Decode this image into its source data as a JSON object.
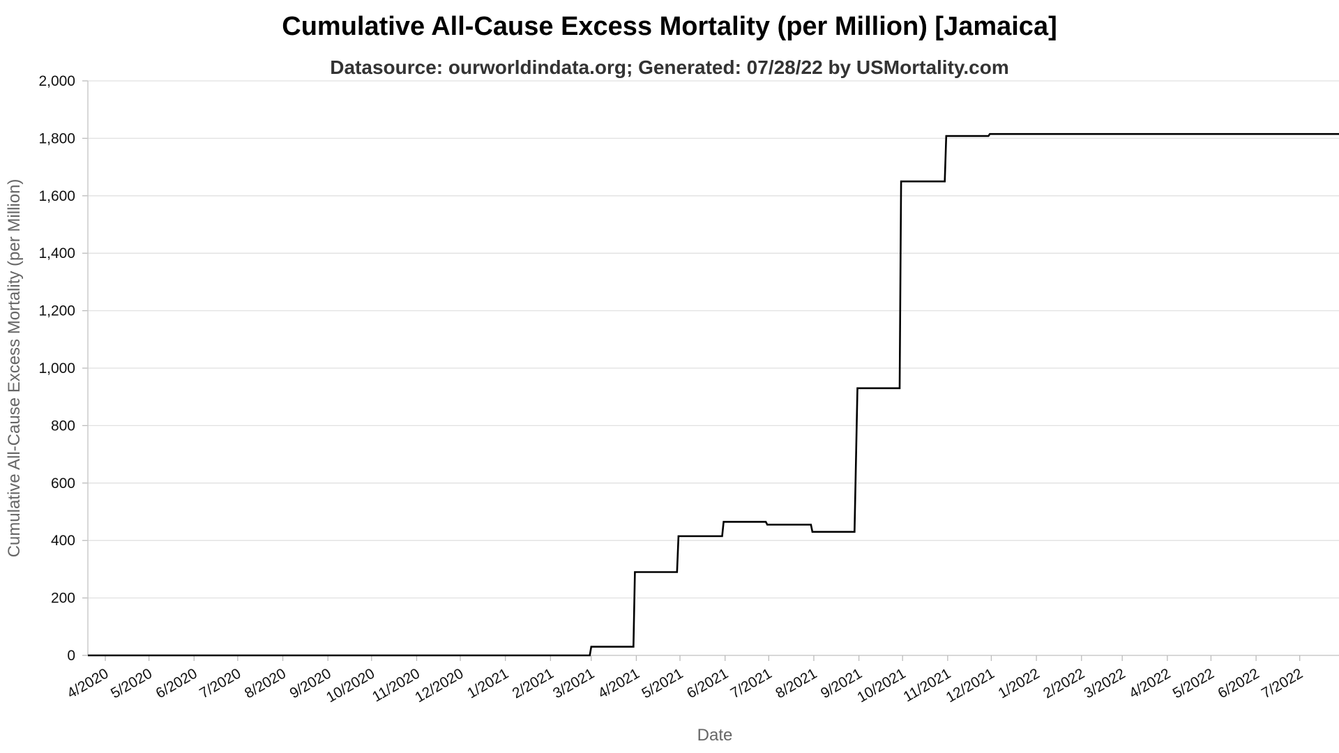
{
  "colors": {
    "line": "#000000",
    "grid": "#e1e1e1",
    "axis_title": "#666666",
    "background": "#ffffff"
  },
  "chart_data": {
    "type": "line",
    "title": "Cumulative All-Cause Excess Mortality (per Million) [Jamaica]",
    "subtitle": "Datasource: ourworldindata.org; Generated: 07/28/22 by USMortality.com",
    "xlabel": "Date",
    "ylabel": "Cumulative All-Cause Excess Mortality (per Million)",
    "ylim": [
      0,
      2000
    ],
    "y_ticks": [
      0,
      200,
      400,
      600,
      800,
      1000,
      1200,
      1400,
      1600,
      1800,
      2000
    ],
    "y_tick_labels": [
      "0",
      "200",
      "400",
      "600",
      "800",
      "1,000",
      "1,200",
      "1,400",
      "1,600",
      "1,800",
      "2,000"
    ],
    "x_range": [
      "2020-03-20",
      "2022-07-28"
    ],
    "x_ticks": [
      "2020-04-01",
      "2020-05-01",
      "2020-06-01",
      "2020-07-01",
      "2020-08-01",
      "2020-09-01",
      "2020-10-01",
      "2020-11-01",
      "2020-12-01",
      "2021-01-01",
      "2021-02-01",
      "2021-03-01",
      "2021-04-01",
      "2021-05-01",
      "2021-06-01",
      "2021-07-01",
      "2021-08-01",
      "2021-09-01",
      "2021-10-01",
      "2021-11-01",
      "2021-12-01",
      "2022-01-01",
      "2022-02-01",
      "2022-03-01",
      "2022-04-01",
      "2022-05-01",
      "2022-06-01",
      "2022-07-01"
    ],
    "x_tick_labels": [
      "4/2020",
      "5/2020",
      "6/2020",
      "7/2020",
      "8/2020",
      "9/2020",
      "10/2020",
      "11/2020",
      "12/2020",
      "1/2021",
      "2/2021",
      "3/2021",
      "4/2021",
      "5/2021",
      "6/2021",
      "7/2021",
      "8/2021",
      "9/2021",
      "10/2021",
      "11/2021",
      "12/2021",
      "1/2022",
      "2/2022",
      "3/2022",
      "4/2022",
      "5/2022",
      "6/2022",
      "7/2022"
    ],
    "grid": true,
    "series": [
      {
        "points": [
          [
            "2020-03-20",
            0
          ],
          [
            "2020-03-31",
            0
          ],
          [
            "2021-02-28",
            0
          ],
          [
            "2021-03-01",
            30
          ],
          [
            "2021-03-30",
            30
          ],
          [
            "2021-03-31",
            290
          ],
          [
            "2021-04-29",
            290
          ],
          [
            "2021-04-30",
            415
          ],
          [
            "2021-05-30",
            415
          ],
          [
            "2021-05-31",
            465
          ],
          [
            "2021-06-29",
            465
          ],
          [
            "2021-06-30",
            455
          ],
          [
            "2021-07-30",
            455
          ],
          [
            "2021-07-31",
            430
          ],
          [
            "2021-08-29",
            430
          ],
          [
            "2021-08-31",
            930
          ],
          [
            "2021-09-29",
            930
          ],
          [
            "2021-09-30",
            1650
          ],
          [
            "2021-10-30",
            1650
          ],
          [
            "2021-10-31",
            1808
          ],
          [
            "2021-11-29",
            1808
          ],
          [
            "2021-11-30",
            1815
          ],
          [
            "2022-07-28",
            1815
          ]
        ]
      }
    ]
  }
}
